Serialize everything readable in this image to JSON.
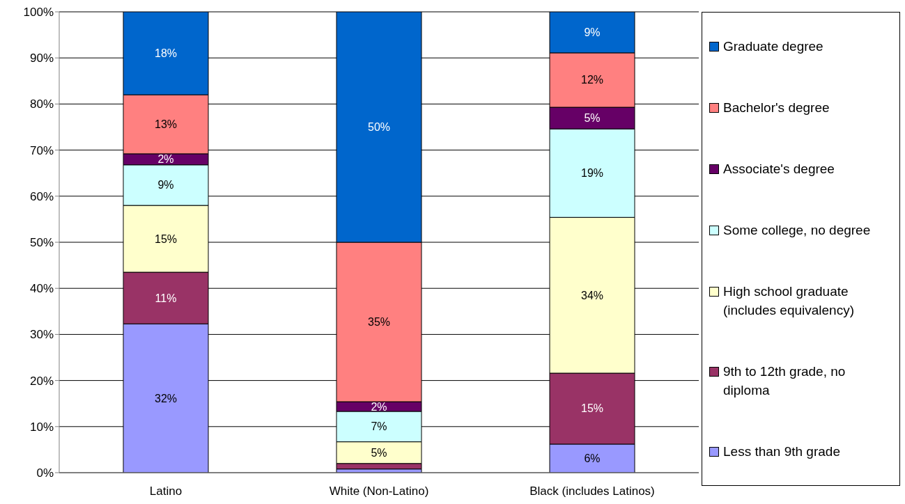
{
  "chart_data": {
    "type": "bar",
    "stacked": true,
    "categories": [
      "Latino",
      "White (Non-Latino)",
      "Black (includes Latinos)"
    ],
    "ylim": [
      0,
      100
    ],
    "yticks": [
      {
        "value": 0,
        "label": "0%"
      },
      {
        "value": 10,
        "label": "10%"
      },
      {
        "value": 20,
        "label": "20%"
      },
      {
        "value": 30,
        "label": "30%"
      },
      {
        "value": 40,
        "label": "40%"
      },
      {
        "value": 50,
        "label": "50%"
      },
      {
        "value": 60,
        "label": "60%"
      },
      {
        "value": 70,
        "label": "70%"
      },
      {
        "value": 80,
        "label": "80%"
      },
      {
        "value": 90,
        "label": "90%"
      },
      {
        "value": 100,
        "label": "100%"
      }
    ],
    "grid": "y",
    "legend": "right",
    "series": [
      {
        "name": "Less than 9th grade",
        "color": "#9999ff",
        "values": [
          32.3,
          0.8,
          6.2
        ],
        "value_labels": [
          "32%",
          null,
          "6%"
        ]
      },
      {
        "name": "9th to 12th grade, no diploma",
        "color": "#993366",
        "values": [
          11.2,
          1.2,
          15.4
        ],
        "value_labels": [
          "11%",
          null,
          "15%"
        ]
      },
      {
        "name": "High school graduate (includes equivalency)",
        "color": "#ffffcc",
        "values": [
          14.5,
          4.7,
          33.8
        ],
        "value_labels": [
          "15%",
          "5%",
          "34%"
        ]
      },
      {
        "name": "Some college, no degree",
        "color": "#ccffff",
        "values": [
          8.8,
          6.6,
          19.2
        ],
        "value_labels": [
          "9%",
          "7%",
          "19%"
        ]
      },
      {
        "name": "Associate's degree",
        "color": "#660066",
        "values": [
          2.4,
          2.1,
          4.7
        ],
        "value_labels": [
          "2%",
          "2%",
          "5%"
        ]
      },
      {
        "name": "Bachelor's degree",
        "color": "#ff8080",
        "values": [
          12.8,
          34.6,
          11.8
        ],
        "value_labels": [
          "13%",
          "35%",
          "12%"
        ]
      },
      {
        "name": "Graduate degree",
        "color": "#0066cc",
        "values": [
          18.0,
          50.0,
          8.9
        ],
        "value_labels": [
          "18%",
          "50%",
          "9%"
        ]
      }
    ]
  }
}
